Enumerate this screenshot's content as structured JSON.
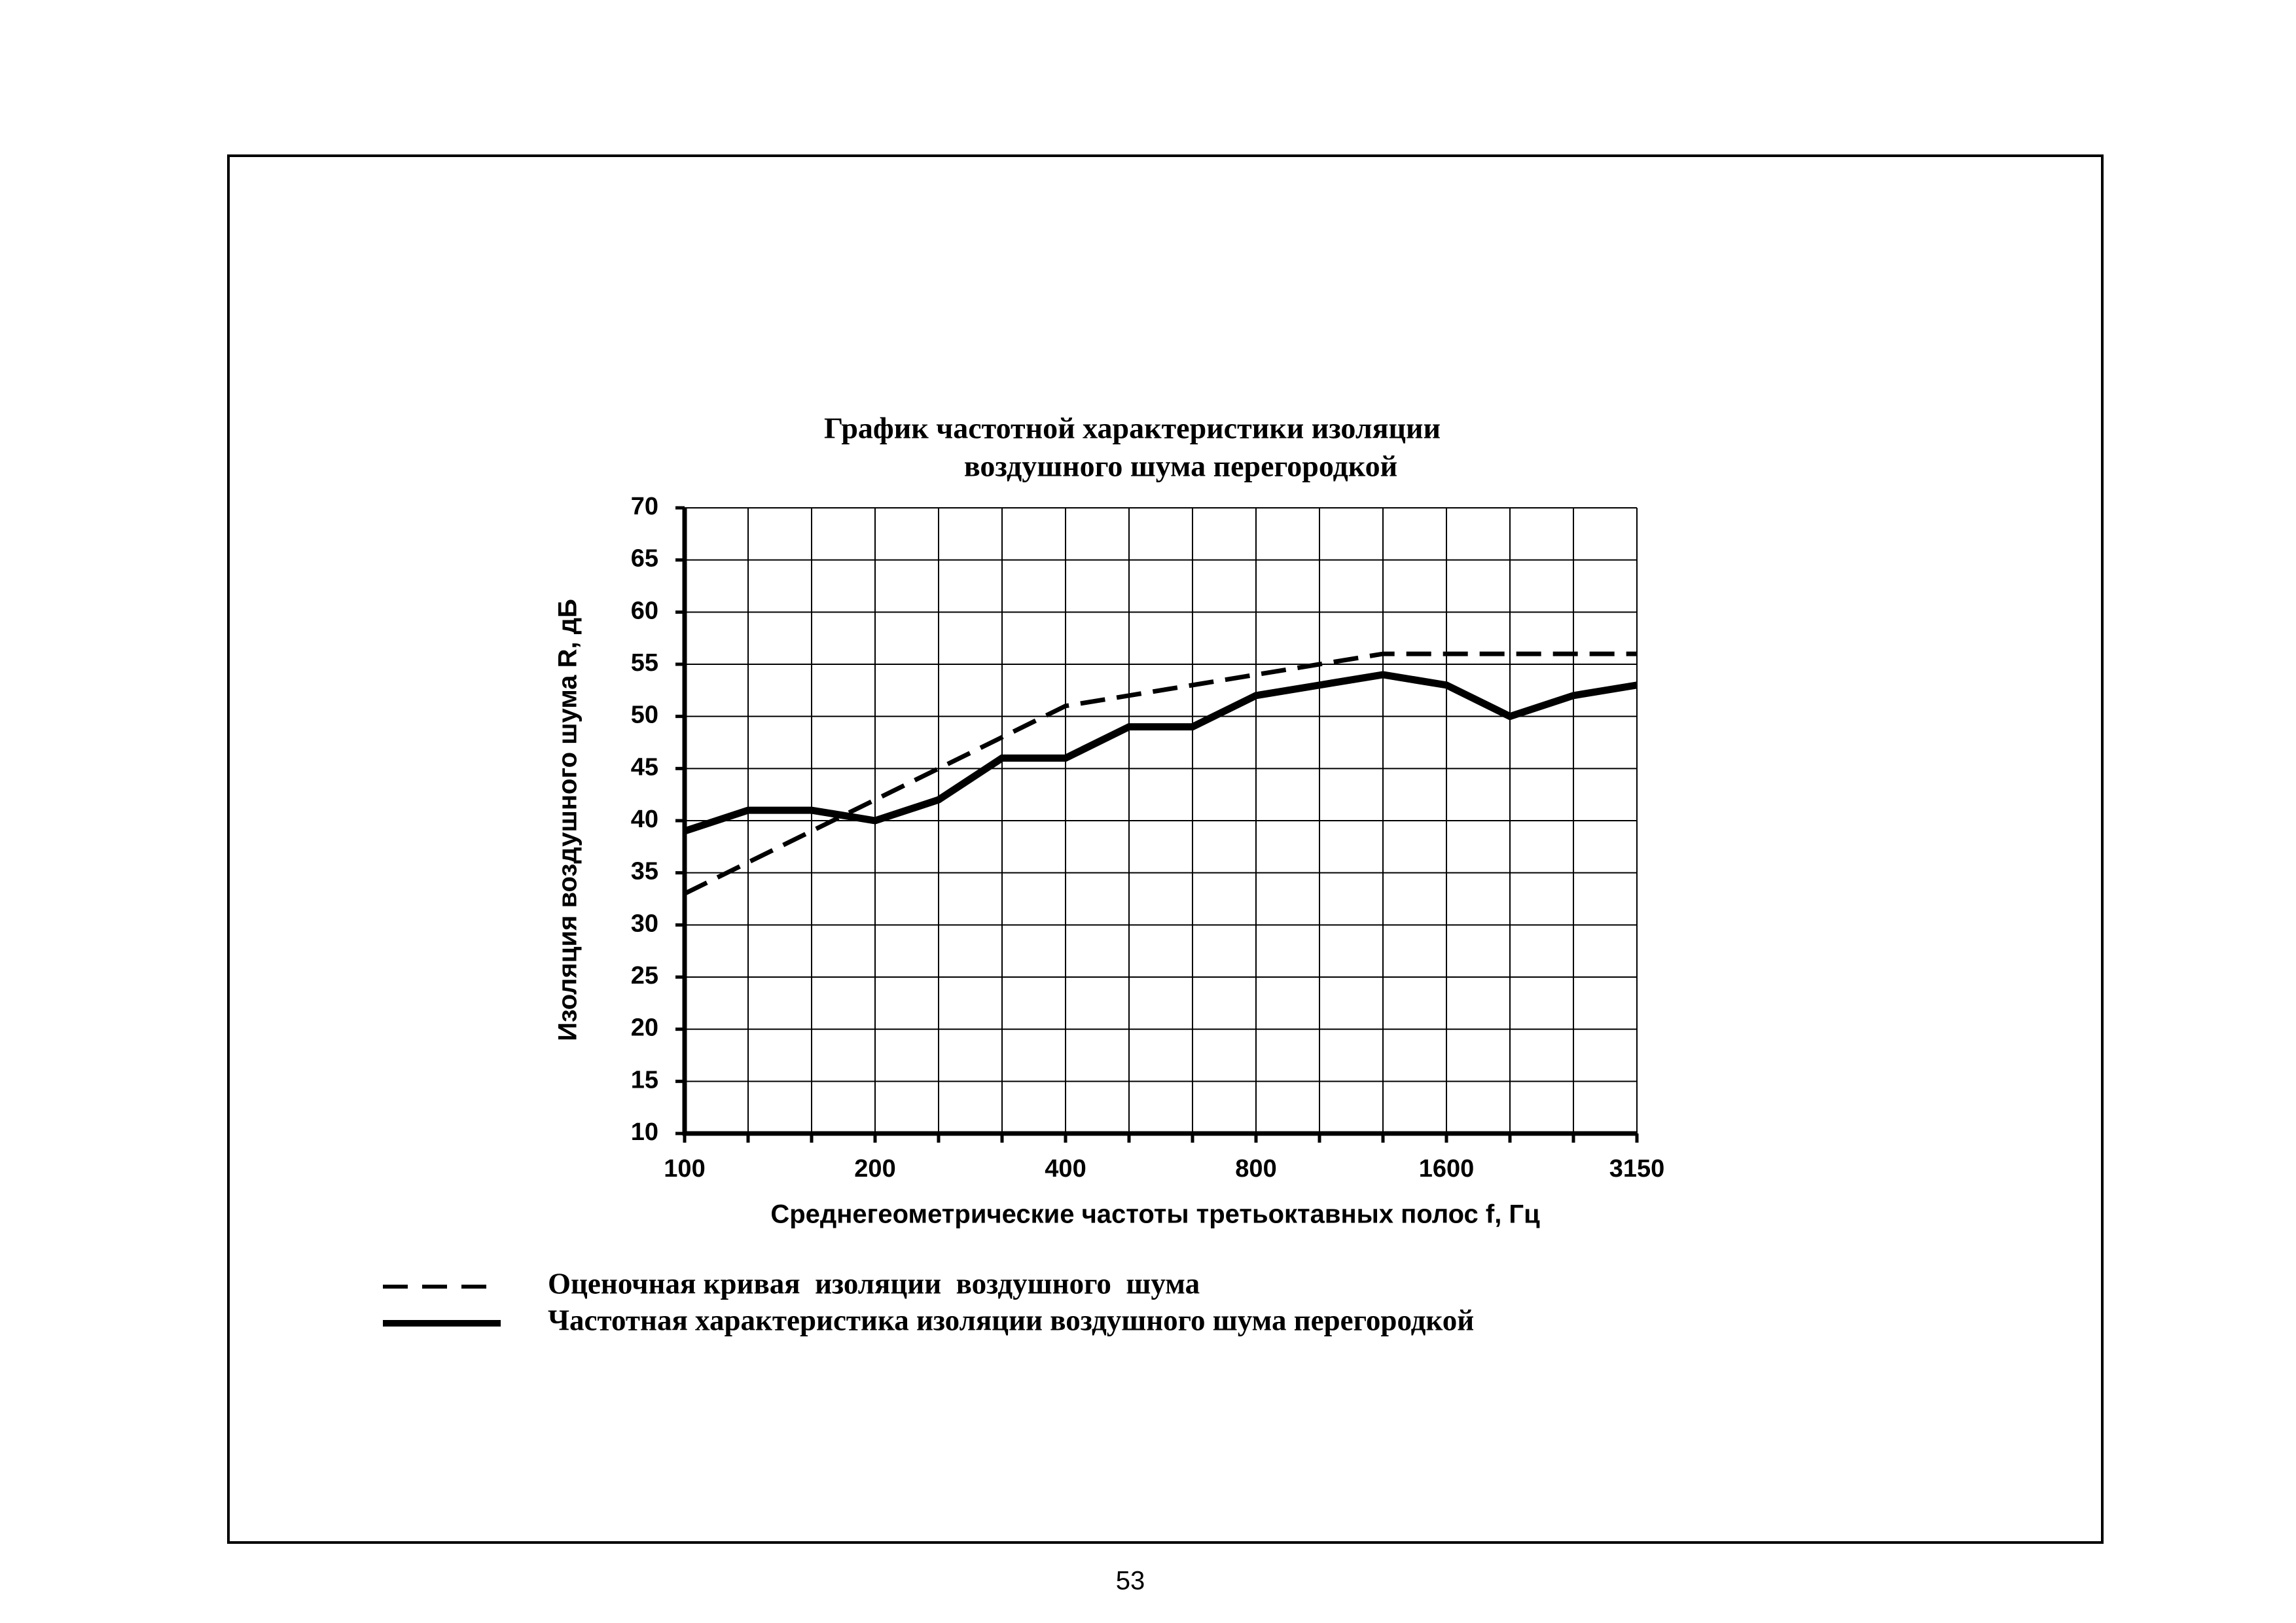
{
  "chart_data": {
    "type": "line",
    "title": [
      "График частотной характеристики изоляции",
      "воздушного шума перегородкой"
    ],
    "x_label": "Среднегеометрические частоты третьоктавных полос f,  Гц",
    "y_label": "Изоляция воздушного  шума  R,  дБ",
    "categories": [
      "100",
      null,
      null,
      "200",
      null,
      null,
      "400",
      null,
      null,
      "800",
      null,
      null,
      "1600",
      null,
      null,
      "3150"
    ],
    "series": [
      {
        "name": "Оценочная кривая  изоляции  воздушного  шума",
        "color": "#000000",
        "dashed": true,
        "values": [
          33,
          36,
          39,
          42,
          45,
          48,
          51,
          52,
          53,
          54,
          55,
          56,
          56,
          56,
          56,
          56
        ]
      },
      {
        "name": "Частотная характеристика изоляции воздушного шума перегородкой",
        "color": "#000000",
        "dashed": false,
        "values": [
          39,
          41,
          41,
          40,
          42,
          46,
          46,
          49,
          49,
          52,
          53,
          54,
          53,
          50,
          52,
          53
        ]
      }
    ],
    "ylim": [
      10,
      70
    ],
    "yticks": [
      10,
      15,
      20,
      25,
      30,
      35,
      40,
      45,
      50,
      55,
      60,
      65,
      70
    ],
    "grid": true
  },
  "page_number": "53"
}
